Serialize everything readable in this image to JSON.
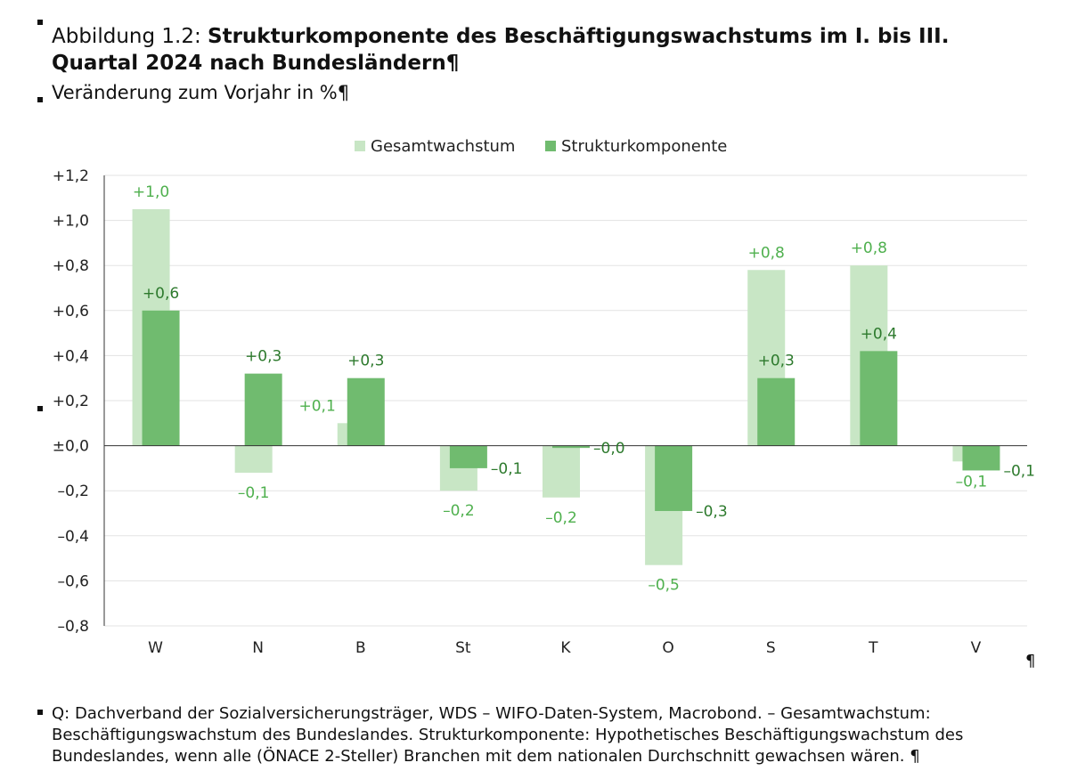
{
  "heading": {
    "prefix": "Abbildung 1.2:",
    "title": "Strukturkomponente des Beschäftigungswachstums im I. bis III. Quartal 2024 nach Bundesländern",
    "pilcrow": "¶"
  },
  "subtitle": {
    "text": "Veränderung zum Vorjahr in %",
    "pilcrow": "¶"
  },
  "colors": {
    "light": "#c8e6c5",
    "dark": "#70bb6f",
    "label_light": "#4fb04e",
    "label_dark": "#2d7a2d",
    "grid": "#e3e3e3",
    "axis": "#333333"
  },
  "chart_data": {
    "type": "bar",
    "categories": [
      "W",
      "N",
      "B",
      "St",
      "K",
      "O",
      "S",
      "T",
      "V"
    ],
    "series": [
      {
        "name": "Gesamtwachstum",
        "values": [
          1.05,
          -0.12,
          0.1,
          -0.2,
          -0.23,
          -0.53,
          0.78,
          0.8,
          -0.07
        ],
        "labels": [
          "+1,0",
          "–0,1",
          "+0,1",
          "–0,2",
          "–0,2",
          "–0,5",
          "+0,8",
          "+0,8",
          "–0,1"
        ]
      },
      {
        "name": "Strukturkomponente",
        "values": [
          0.6,
          0.32,
          0.3,
          -0.1,
          -0.01,
          -0.29,
          0.3,
          0.42,
          -0.11
        ],
        "labels": [
          "+0,6",
          "+0,3",
          "+0,3",
          "–0,1",
          "–0,0",
          "–0,3",
          "+0,3",
          "+0,4",
          "–0,1"
        ]
      }
    ],
    "ylim": [
      -0.8,
      1.2
    ],
    "yticks": [
      1.2,
      1.0,
      0.8,
      0.6,
      0.4,
      0.2,
      0.0,
      -0.2,
      -0.4,
      -0.6,
      -0.8
    ],
    "ytick_labels": [
      "+1,2",
      "+1,0",
      "+0,8",
      "+0,6",
      "+0,4",
      "+0,2",
      "±0,0",
      "–0,2",
      "–0,4",
      "–0,6",
      "–0,8"
    ],
    "legend": [
      "Gesamtwachstum",
      "Strukturkomponente"
    ],
    "legend_position": "top-center",
    "grid": true,
    "xlabel": "",
    "ylabel": ""
  },
  "chart_pilcrow": "¶",
  "source": {
    "text": "Q: Dachverband der Sozialversicherungsträger, WDS – WIFO-Daten-System, Macrobond. – Gesamtwachstum: Beschäftigungswachstum des Bundeslandes. Strukturkomponente: Hypothetisches Beschäftigungswachstum des Bundeslandes, wenn alle (ÖNACE 2-Steller) Branchen mit dem nationalen Durchschnitt gewachsen wären.",
    "pilcrow": "¶"
  }
}
